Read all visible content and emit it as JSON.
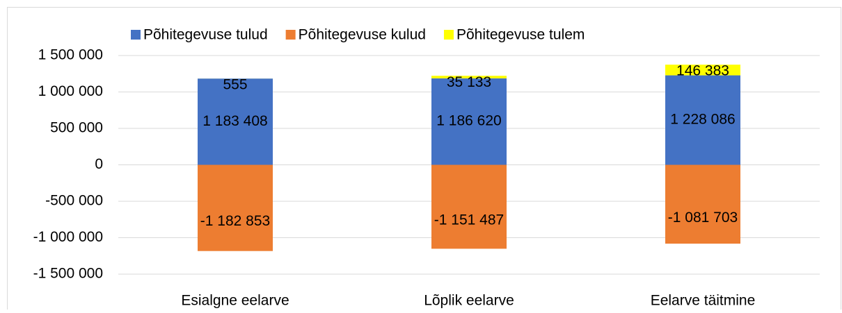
{
  "chart_data": {
    "type": "stacked_bar",
    "categories": [
      "Esialgne eelarve",
      "Lõplik eelarve",
      "Eelarve täitmine"
    ],
    "series": [
      {
        "name": "Põhitegevuse tulud",
        "color": "#4472c4",
        "values": [
          1183408,
          1186620,
          1228086
        ],
        "value_labels": [
          "1 183 408",
          "1 186 620",
          "1 228 086"
        ]
      },
      {
        "name": "Põhitegevuse kulud",
        "color": "#ed7d31",
        "values": [
          -1182853,
          -1151487,
          -1081703
        ],
        "value_labels": [
          "-1 182 853",
          "-1 151 487",
          "-1 081 703"
        ]
      },
      {
        "name": "Põhitegevuse tulem",
        "color": "#ffff00",
        "values": [
          555,
          35133,
          146383
        ],
        "value_labels": [
          "555",
          "35 133",
          "146 383"
        ]
      }
    ],
    "ylim": [
      -1500000,
      1500000
    ],
    "yticks": [
      {
        "value": -1500000,
        "label": "-1 500 000"
      },
      {
        "value": -1000000,
        "label": "-1 000 000"
      },
      {
        "value": -500000,
        "label": "-500 000"
      },
      0,
      {
        "value": 500000,
        "label": "500 000"
      },
      {
        "value": 1000000,
        "label": "1 000 000"
      },
      {
        "value": 1500000,
        "label": "1 500 000"
      }
    ],
    "grid": true,
    "legend": "top"
  }
}
